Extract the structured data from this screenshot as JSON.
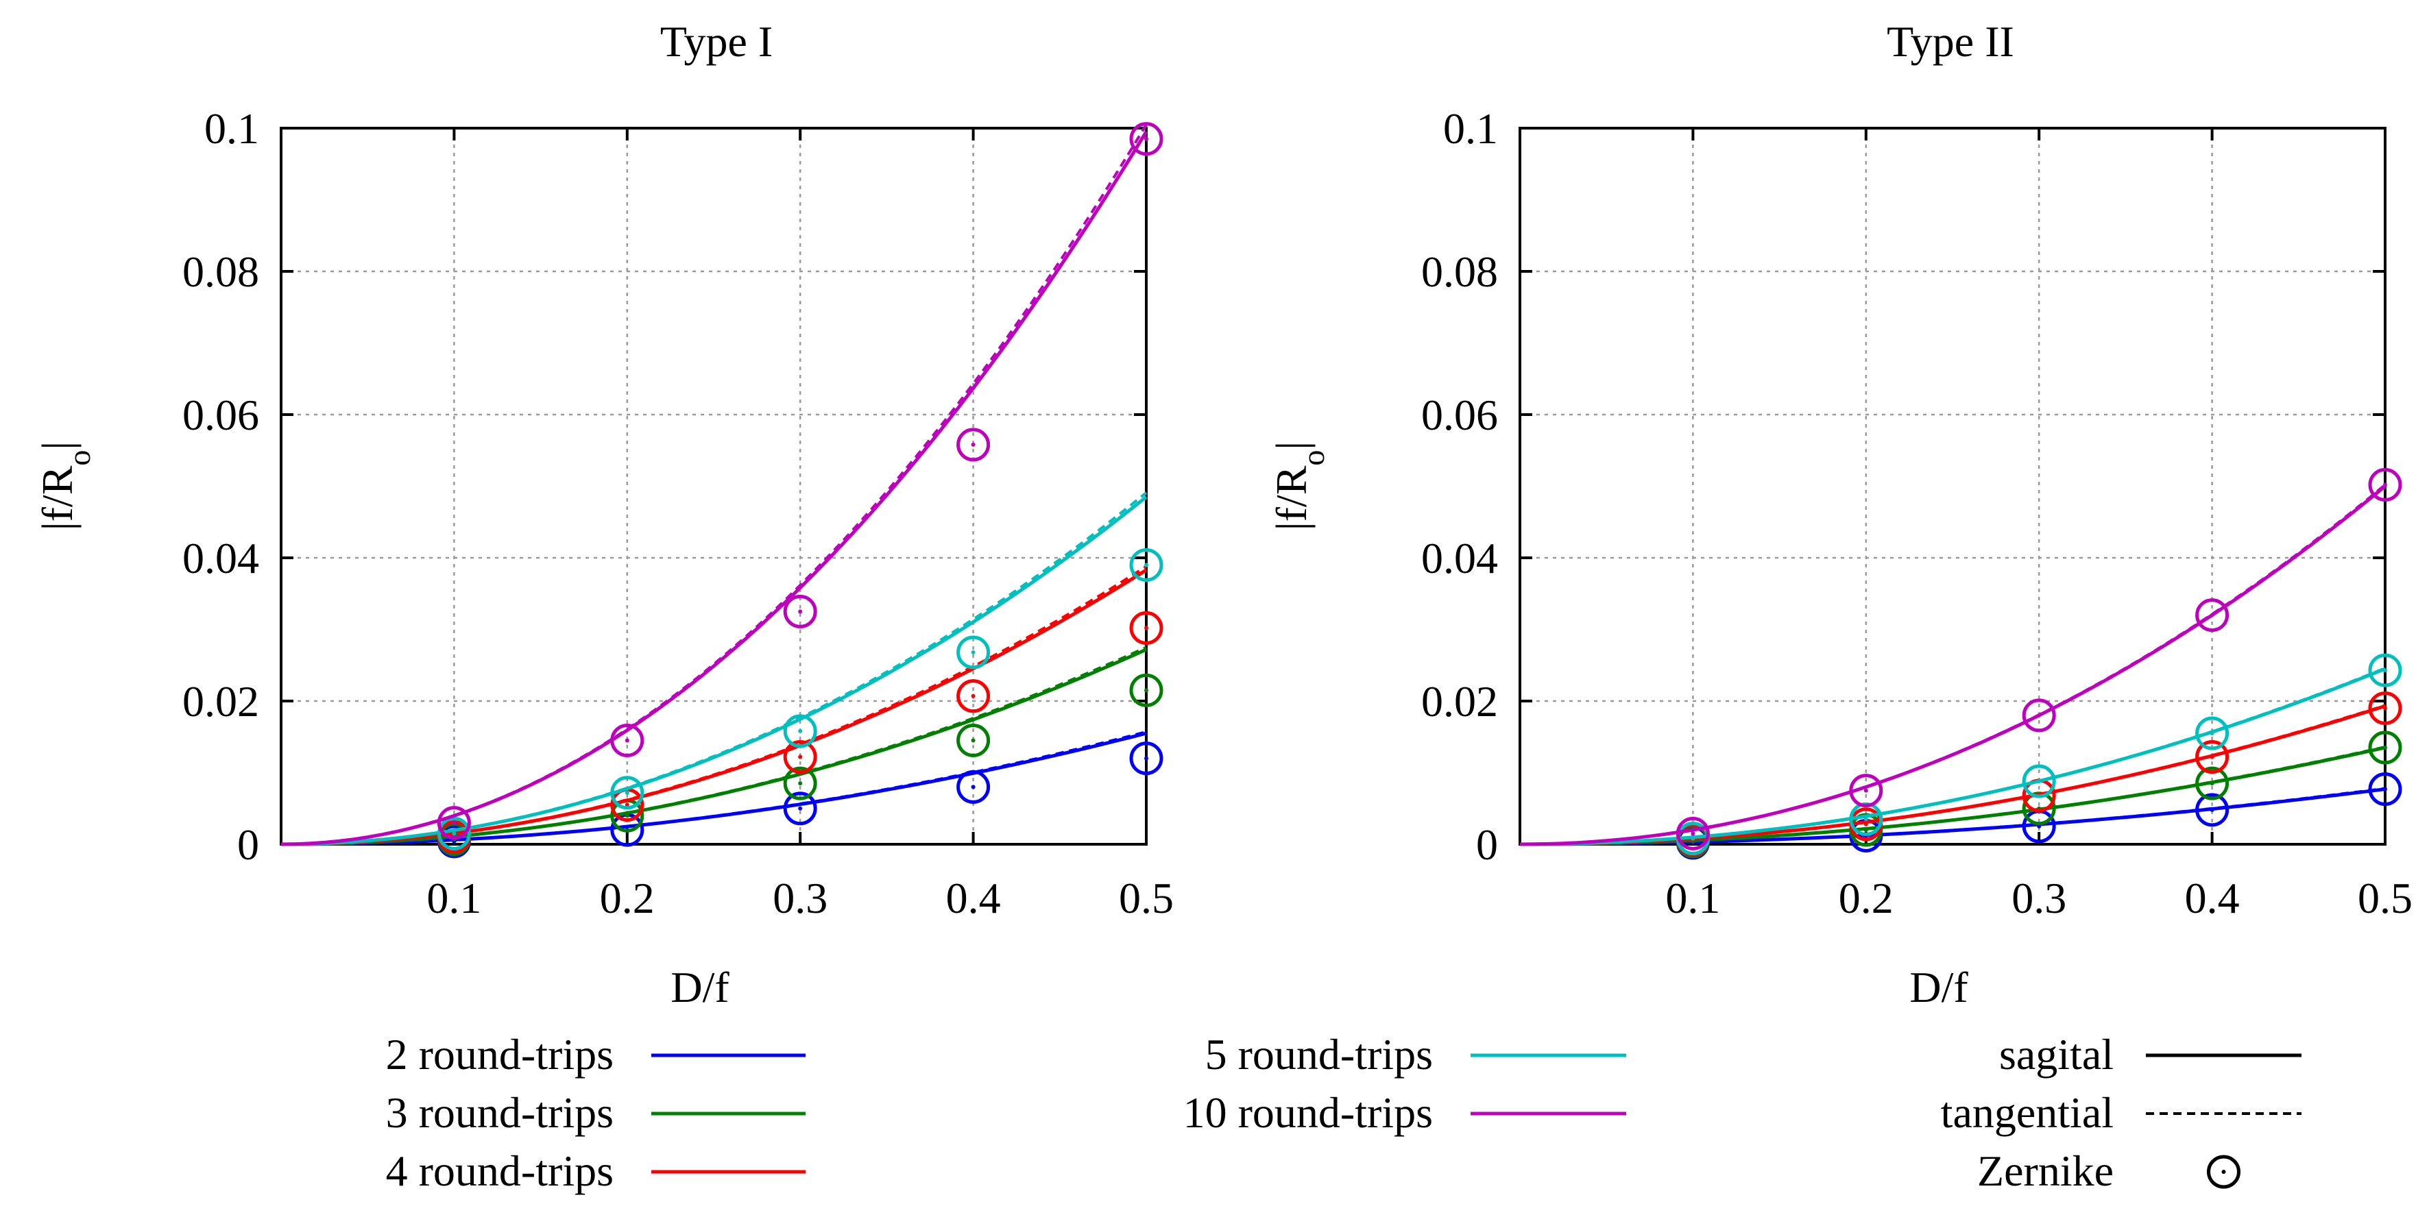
{
  "chart_data": [
    {
      "type": "line",
      "title": "Type I",
      "xlabel": "D/f",
      "ylabel_main": "|f/R",
      "ylabel_sub": "o",
      "ylabel_end": "|",
      "xlim": [
        0,
        0.5
      ],
      "ylim": [
        0,
        0.1
      ],
      "xticks": [
        "0.1",
        "0.2",
        "0.3",
        "0.4",
        "0.5"
      ],
      "yticks": [
        "0",
        "0.02",
        "0.04",
        "0.06",
        "0.08",
        "0.1"
      ],
      "xtick_values": [
        0.1,
        0.2,
        0.3,
        0.4,
        0.5
      ],
      "ytick_values": [
        0,
        0.02,
        0.04,
        0.06,
        0.08,
        0.1
      ],
      "series": [
        {
          "name": "2 round-trips",
          "color": "#0000ff",
          "sagital_end": 0.0155,
          "tangential_end": 0.0157,
          "zernike_x": [
            0.1,
            0.2,
            0.3,
            0.4,
            0.5
          ],
          "zernike_y": [
            0.0004,
            0.002,
            0.005,
            0.008,
            0.012
          ]
        },
        {
          "name": "3 round-trips",
          "color": "#008000",
          "sagital_end": 0.0272,
          "tangential_end": 0.0275,
          "zernike_x": [
            0.1,
            0.2,
            0.3,
            0.4,
            0.5
          ],
          "zernike_y": [
            0.0007,
            0.004,
            0.0085,
            0.0145,
            0.0215
          ]
        },
        {
          "name": "4 round-trips",
          "color": "#ff0000",
          "sagital_end": 0.0383,
          "tangential_end": 0.0388,
          "zernike_x": [
            0.1,
            0.2,
            0.3,
            0.4,
            0.5
          ],
          "zernike_y": [
            0.001,
            0.0055,
            0.0122,
            0.0207,
            0.0302
          ]
        },
        {
          "name": "5 round-trips",
          "color": "#00bfbf",
          "sagital_end": 0.0485,
          "tangential_end": 0.0491,
          "zernike_x": [
            0.1,
            0.2,
            0.3,
            0.4,
            0.5
          ],
          "zernike_y": [
            0.0015,
            0.0072,
            0.0158,
            0.0268,
            0.039
          ]
        },
        {
          "name": "10 round-trips",
          "color": "#bf00bf",
          "sagital_end": 0.0995,
          "tangential_end": 0.1005,
          "zernike_x": [
            0.1,
            0.2,
            0.3,
            0.4,
            0.5
          ],
          "zernike_y": [
            0.003,
            0.0145,
            0.0325,
            0.0558,
            0.0985
          ]
        }
      ]
    },
    {
      "type": "line",
      "title": "Type II",
      "xlabel": "D/f",
      "ylabel_main": "|f/R",
      "ylabel_sub": "o",
      "ylabel_end": "|",
      "xlim": [
        0,
        0.5
      ],
      "ylim": [
        0,
        0.1
      ],
      "xticks": [
        "0.1",
        "0.2",
        "0.3",
        "0.4",
        "0.5"
      ],
      "yticks": [
        "0",
        "0.02",
        "0.04",
        "0.06",
        "0.08",
        "0.1"
      ],
      "xtick_values": [
        0.1,
        0.2,
        0.3,
        0.4,
        0.5
      ],
      "ytick_values": [
        0,
        0.02,
        0.04,
        0.06,
        0.08,
        0.1
      ],
      "series": [
        {
          "name": "2 round-trips",
          "color": "#0000ff",
          "sagital_end": 0.0077,
          "tangential_end": 0.0078,
          "zernike_x": [
            0.1,
            0.2,
            0.3,
            0.4,
            0.5
          ],
          "zernike_y": [
            0.0002,
            0.0012,
            0.0025,
            0.0048,
            0.0077
          ]
        },
        {
          "name": "3 round-trips",
          "color": "#008000",
          "sagital_end": 0.0135,
          "tangential_end": 0.0136,
          "zernike_x": [
            0.1,
            0.2,
            0.3,
            0.4,
            0.5
          ],
          "zernike_y": [
            0.0004,
            0.002,
            0.005,
            0.0085,
            0.0135
          ]
        },
        {
          "name": "4 round-trips",
          "color": "#ff0000",
          "sagital_end": 0.0193,
          "tangential_end": 0.0194,
          "zernike_x": [
            0.1,
            0.2,
            0.3,
            0.4,
            0.5
          ],
          "zernike_y": [
            0.0006,
            0.0028,
            0.0068,
            0.0122,
            0.019
          ]
        },
        {
          "name": "5 round-trips",
          "color": "#00bfbf",
          "sagital_end": 0.0245,
          "tangential_end": 0.0246,
          "zernike_x": [
            0.1,
            0.2,
            0.3,
            0.4,
            0.5
          ],
          "zernike_y": [
            0.0008,
            0.0035,
            0.0088,
            0.0155,
            0.0243
          ]
        },
        {
          "name": "10 round-trips",
          "color": "#bf00bf",
          "sagital_end": 0.05,
          "tangential_end": 0.0502,
          "zernike_x": [
            0.1,
            0.2,
            0.3,
            0.4,
            0.5
          ],
          "zernike_y": [
            0.0015,
            0.0075,
            0.018,
            0.032,
            0.0502
          ]
        }
      ]
    }
  ],
  "legend": {
    "entries": [
      {
        "label": "2 round-trips",
        "color": "#0000ff",
        "style": "solid"
      },
      {
        "label": "3 round-trips",
        "color": "#008000",
        "style": "solid"
      },
      {
        "label": "4 round-trips",
        "color": "#ff0000",
        "style": "solid"
      },
      {
        "label": "5 round-trips",
        "color": "#00bfbf",
        "style": "solid"
      },
      {
        "label": "10 round-trips",
        "color": "#bf00bf",
        "style": "solid"
      },
      {
        "label": "sagital",
        "color": "#000000",
        "style": "solid"
      },
      {
        "label": "tangential",
        "color": "#000000",
        "style": "dashed"
      },
      {
        "label": "Zernike",
        "color": "#000000",
        "style": "circle"
      }
    ]
  }
}
